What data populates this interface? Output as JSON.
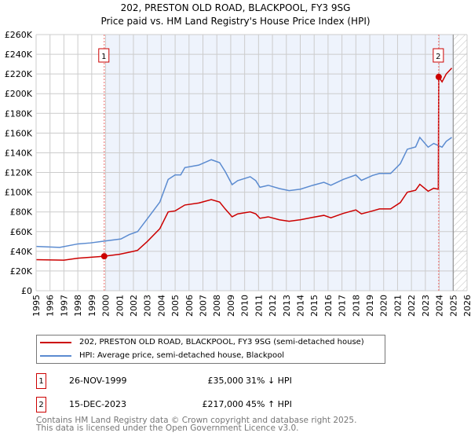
{
  "title": "202, PRESTON OLD ROAD, BLACKPOOL, FY3 9SG",
  "subtitle": "Price paid vs. HM Land Registry's House Price Index (HPI)",
  "chart_data": {
    "type": "line",
    "title": "202, PRESTON OLD ROAD, BLACKPOOL, FY3 9SG",
    "subtitle": "Price paid vs. HM Land Registry's House Price Index (HPI)",
    "xlim": [
      1995,
      2026
    ],
    "ylim": [
      0,
      260000
    ],
    "x_ticks": [
      "1995",
      "1996",
      "1997",
      "1998",
      "1999",
      "2000",
      "2001",
      "2002",
      "2003",
      "2004",
      "2005",
      "2006",
      "2007",
      "2008",
      "2009",
      "2010",
      "2011",
      "2012",
      "2013",
      "2014",
      "2015",
      "2016",
      "2017",
      "2018",
      "2019",
      "2020",
      "2021",
      "2022",
      "2023",
      "2024",
      "2025",
      "2026"
    ],
    "y_ticks": [
      "£0",
      "£20K",
      "£40K",
      "£60K",
      "£80K",
      "£100K",
      "£120K",
      "£140K",
      "£160K",
      "£180K",
      "£200K",
      "£220K",
      "£240K",
      "£260K"
    ],
    "grid": true,
    "colors": {
      "property": "#cc0000",
      "hpi": "#5b8bd0",
      "shade": "#eef3fc"
    },
    "series": [
      {
        "name": "202, PRESTON OLD ROAD, BLACKPOOL, FY3 9SG (semi-detached house)",
        "points": [
          [
            1995,
            31500
          ],
          [
            1997,
            31000
          ],
          [
            1998,
            33000
          ],
          [
            1999.9,
            35000
          ],
          [
            2001,
            37000
          ],
          [
            2002,
            40000
          ],
          [
            2002.3,
            41000
          ],
          [
            2003,
            50000
          ],
          [
            2003.9,
            63000
          ],
          [
            2004.5,
            80000
          ],
          [
            2005,
            81000
          ],
          [
            2005.7,
            87000
          ],
          [
            2006.7,
            89000
          ],
          [
            2007.6,
            92500
          ],
          [
            2008.2,
            90000
          ],
          [
            2008.6,
            83000
          ],
          [
            2009.1,
            75000
          ],
          [
            2009.5,
            78000
          ],
          [
            2010.4,
            80000
          ],
          [
            2010.8,
            78000
          ],
          [
            2011.1,
            73500
          ],
          [
            2011.7,
            75000
          ],
          [
            2012.5,
            72000
          ],
          [
            2013.2,
            70500
          ],
          [
            2014,
            72000
          ],
          [
            2014.9,
            74500
          ],
          [
            2015.7,
            76500
          ],
          [
            2016.2,
            74000
          ],
          [
            2017.1,
            78500
          ],
          [
            2018,
            82000
          ],
          [
            2018.4,
            78000
          ],
          [
            2019.2,
            81000
          ],
          [
            2019.7,
            83000
          ],
          [
            2020.5,
            83000
          ],
          [
            2021.2,
            89500
          ],
          [
            2021.7,
            100000
          ],
          [
            2022.3,
            102000
          ],
          [
            2022.6,
            108000
          ],
          [
            2023.2,
            101000
          ],
          [
            2023.6,
            104000
          ],
          [
            2023.93,
            103000
          ],
          [
            2023.96,
            217000
          ],
          [
            2024.2,
            212000
          ],
          [
            2024.5,
            220000
          ],
          [
            2024.9,
            226000
          ]
        ]
      },
      {
        "name": "HPI: Average price, semi-detached house, Blackpool",
        "points": [
          [
            1995,
            45000
          ],
          [
            1996.7,
            44000
          ],
          [
            1998,
            47500
          ],
          [
            1998.9,
            48500
          ],
          [
            2000,
            50500
          ],
          [
            2001.1,
            52500
          ],
          [
            2001.7,
            57000
          ],
          [
            2002.3,
            60000
          ],
          [
            2003,
            73000
          ],
          [
            2003.9,
            90000
          ],
          [
            2004.5,
            113000
          ],
          [
            2005,
            117500
          ],
          [
            2005.4,
            117500
          ],
          [
            2005.7,
            125000
          ],
          [
            2006.7,
            127500
          ],
          [
            2007.6,
            133000
          ],
          [
            2008.2,
            130000
          ],
          [
            2008.6,
            121000
          ],
          [
            2009.1,
            107700
          ],
          [
            2009.5,
            111700
          ],
          [
            2010.4,
            115700
          ],
          [
            2010.8,
            111700
          ],
          [
            2011.1,
            105000
          ],
          [
            2011.7,
            107000
          ],
          [
            2012.5,
            103700
          ],
          [
            2013.2,
            101600
          ],
          [
            2014,
            103000
          ],
          [
            2014.9,
            107000
          ],
          [
            2015.7,
            110000
          ],
          [
            2016.2,
            107000
          ],
          [
            2017.1,
            113000
          ],
          [
            2018,
            117500
          ],
          [
            2018.4,
            112000
          ],
          [
            2019.2,
            117000
          ],
          [
            2019.7,
            119000
          ],
          [
            2020.5,
            119000
          ],
          [
            2021.2,
            129000
          ],
          [
            2021.7,
            143600
          ],
          [
            2022.3,
            146000
          ],
          [
            2022.6,
            155600
          ],
          [
            2023.2,
            145700
          ],
          [
            2023.6,
            149500
          ],
          [
            2024.2,
            145700
          ],
          [
            2024.5,
            151600
          ],
          [
            2024.9,
            155600
          ]
        ]
      }
    ],
    "annotations": [
      {
        "label": "1",
        "x": 1999.9,
        "y": 35000
      },
      {
        "label": "2",
        "x": 2023.96,
        "y": 217000
      }
    ],
    "shaded_range": [
      2000,
      2025
    ],
    "hatched_from": 2025
  },
  "legend": {
    "property": "202, PRESTON OLD ROAD, BLACKPOOL, FY3 9SG (semi-detached house)",
    "hpi": "HPI: Average price, semi-detached house, Blackpool"
  },
  "sales": [
    {
      "num": "1",
      "date": "26-NOV-1999",
      "price": "£35,000",
      "hpi": "31% ↓ HPI"
    },
    {
      "num": "2",
      "date": "15-DEC-2023",
      "price": "£217,000",
      "hpi": "45% ↑ HPI"
    }
  ],
  "footer": {
    "line1": "Contains HM Land Registry data © Crown copyright and database right 2025.",
    "line2": "This data is licensed under the Open Government Licence v3.0."
  }
}
